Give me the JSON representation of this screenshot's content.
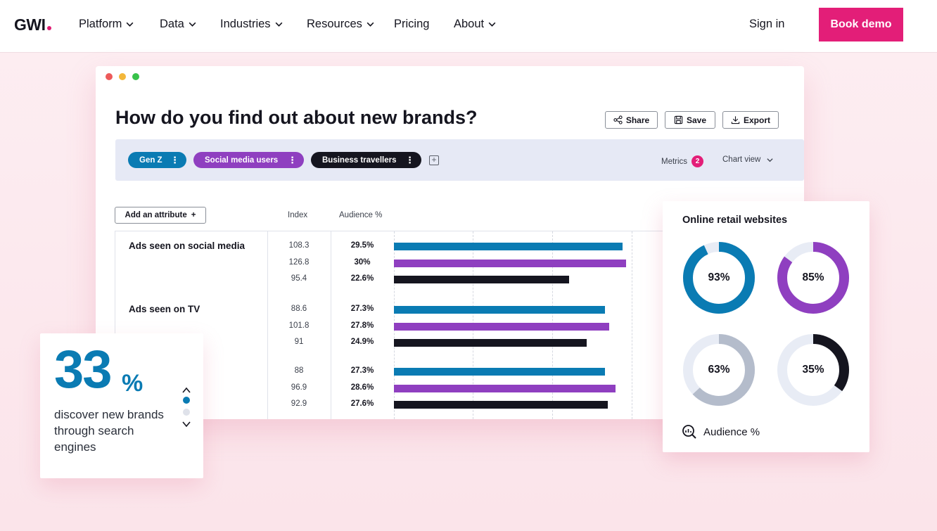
{
  "nav": {
    "logo": "GWI",
    "items": [
      {
        "label": "Platform",
        "dropdown": true
      },
      {
        "label": "Data",
        "dropdown": true
      },
      {
        "label": "Industries",
        "dropdown": true
      },
      {
        "label": "Resources",
        "dropdown": true
      },
      {
        "label": "Pricing",
        "dropdown": false
      },
      {
        "label": "About",
        "dropdown": true
      }
    ],
    "sign_in": "Sign in",
    "cta": "Book demo"
  },
  "colors": {
    "brand_pink": "#e31e78",
    "blue": "#0a7bb3",
    "purple": "#8f3fc0",
    "dark": "#15151f",
    "grey_ring": "#b4bccb"
  },
  "app": {
    "title": "How do you find out about new brands?",
    "toolbar": {
      "share": "Share",
      "save": "Save",
      "export": "Export"
    },
    "filters": [
      {
        "label": "Gen Z",
        "color": "#0a7bb3"
      },
      {
        "label": "Social media users",
        "color": "#8f3fc0"
      },
      {
        "label": "Business travellers",
        "color": "#15151f"
      }
    ],
    "metrics_label": "Metrics",
    "metrics_count": "2",
    "chart_view_label": "Chart view",
    "add_attribute": "Add an attribute",
    "col_index": "Index",
    "col_audience": "Audience %"
  },
  "chart_data": {
    "type": "bar",
    "orientation": "horizontal",
    "xlim": [
      0,
      30
    ],
    "rows": [
      {
        "label": "Ads seen on social media",
        "index": [
          "108.3",
          "126.8",
          "95.4"
        ],
        "audience": [
          "29.5%",
          "30%",
          "22.6%"
        ],
        "values": [
          29.5,
          30,
          22.6
        ]
      },
      {
        "label": "Ads seen on TV",
        "index": [
          "88.6",
          "101.8",
          "91"
        ],
        "audience": [
          "27.3%",
          "27.8%",
          "24.9%"
        ],
        "values": [
          27.3,
          27.8,
          24.9
        ]
      },
      {
        "label": "",
        "index": [
          "88",
          "96.9",
          "92.9"
        ],
        "audience": [
          "27.3%",
          "28.6%",
          "27.6%"
        ],
        "values": [
          27.3,
          28.6,
          27.6
        ]
      }
    ]
  },
  "stat": {
    "number": "33",
    "unit": "%",
    "text": "discover new brands through search engines"
  },
  "donut_card": {
    "title": "Online retail websites",
    "donuts": [
      {
        "value": 93,
        "label": "93%",
        "color": "#0a7bb3"
      },
      {
        "value": 85,
        "label": "85%",
        "color": "#8f3fc0"
      },
      {
        "value": 63,
        "label": "63%",
        "color": "#b4bccb"
      },
      {
        "value": 35,
        "label": "35%",
        "color": "#15151f"
      }
    ],
    "footer": "Audience %"
  }
}
